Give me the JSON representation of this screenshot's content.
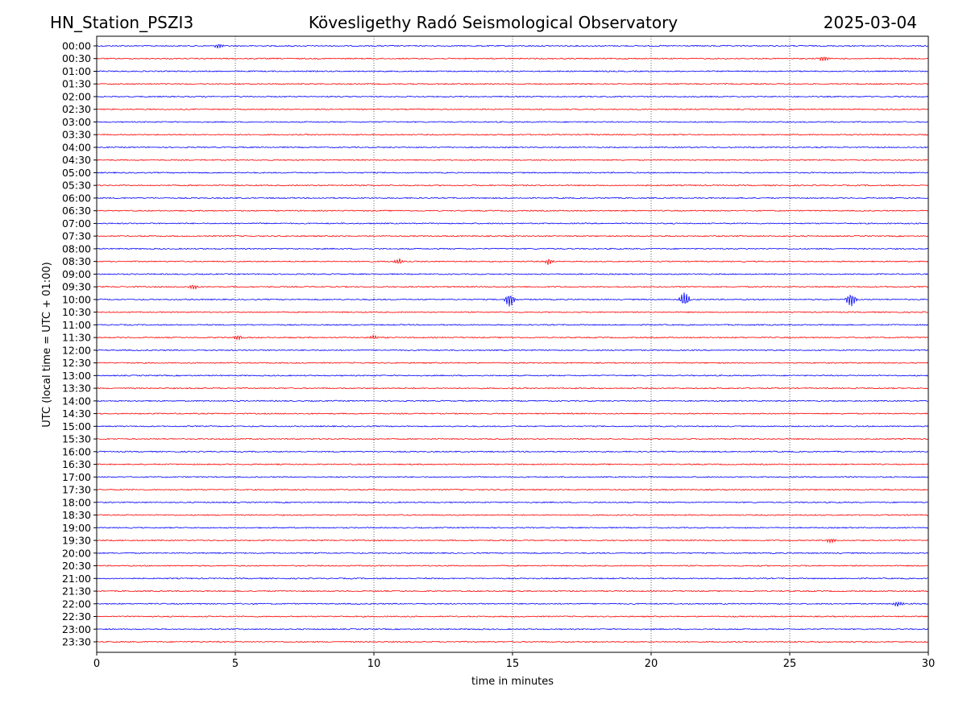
{
  "header": {
    "station": "HN_Station_PSZI3",
    "observatory": "Kövesligethy Radó Seismological Observatory",
    "date": "2025-03-04"
  },
  "chart_data": {
    "type": "line",
    "title": "Kövesligethy Radó Seismological Observatory",
    "xlabel": "time in minutes",
    "ylabel": "UTC (local time = UTC + 01:00)",
    "xlim": [
      0,
      30
    ],
    "xticks": [
      "0",
      "5",
      "10",
      "15",
      "20",
      "25",
      "30"
    ],
    "xtick_values": [
      0,
      5,
      10,
      15,
      20,
      25,
      30
    ],
    "grid": "vertical dotted at x ticks",
    "row_labels": [
      "00:00",
      "00:30",
      "01:00",
      "01:30",
      "02:00",
      "02:30",
      "03:00",
      "03:30",
      "04:00",
      "04:30",
      "05:00",
      "05:30",
      "06:00",
      "06:30",
      "07:00",
      "07:30",
      "08:00",
      "08:30",
      "09:00",
      "09:30",
      "10:00",
      "10:30",
      "11:00",
      "11:30",
      "12:00",
      "12:30",
      "13:00",
      "13:30",
      "14:00",
      "14:30",
      "15:00",
      "15:30",
      "16:00",
      "16:30",
      "17:00",
      "17:30",
      "18:00",
      "18:30",
      "19:00",
      "19:30",
      "20:00",
      "20:30",
      "21:00",
      "21:30",
      "22:00",
      "22:30",
      "23:00",
      "23:30"
    ],
    "row_colors": [
      "#0000ff",
      "#ff0000"
    ],
    "events": [
      {
        "row": "00:00",
        "minute": 4.4,
        "amplitude": 0.2
      },
      {
        "row": "00:30",
        "minute": 26.2,
        "amplitude": 0.2
      },
      {
        "row": "08:30",
        "minute": 10.9,
        "amplitude": 0.25
      },
      {
        "row": "08:30",
        "minute": 16.3,
        "amplitude": 0.25
      },
      {
        "row": "09:30",
        "minute": 3.5,
        "amplitude": 0.2
      },
      {
        "row": "10:00",
        "minute": 14.9,
        "amplitude": 0.6
      },
      {
        "row": "10:00",
        "minute": 21.2,
        "amplitude": 0.6
      },
      {
        "row": "10:00",
        "minute": 27.2,
        "amplitude": 0.6
      },
      {
        "row": "11:30",
        "minute": 5.1,
        "amplitude": 0.2
      },
      {
        "row": "11:30",
        "minute": 10.0,
        "amplitude": 0.2
      },
      {
        "row": "19:30",
        "minute": 26.5,
        "amplitude": 0.2
      },
      {
        "row": "22:00",
        "minute": 28.9,
        "amplitude": 0.2
      }
    ]
  }
}
